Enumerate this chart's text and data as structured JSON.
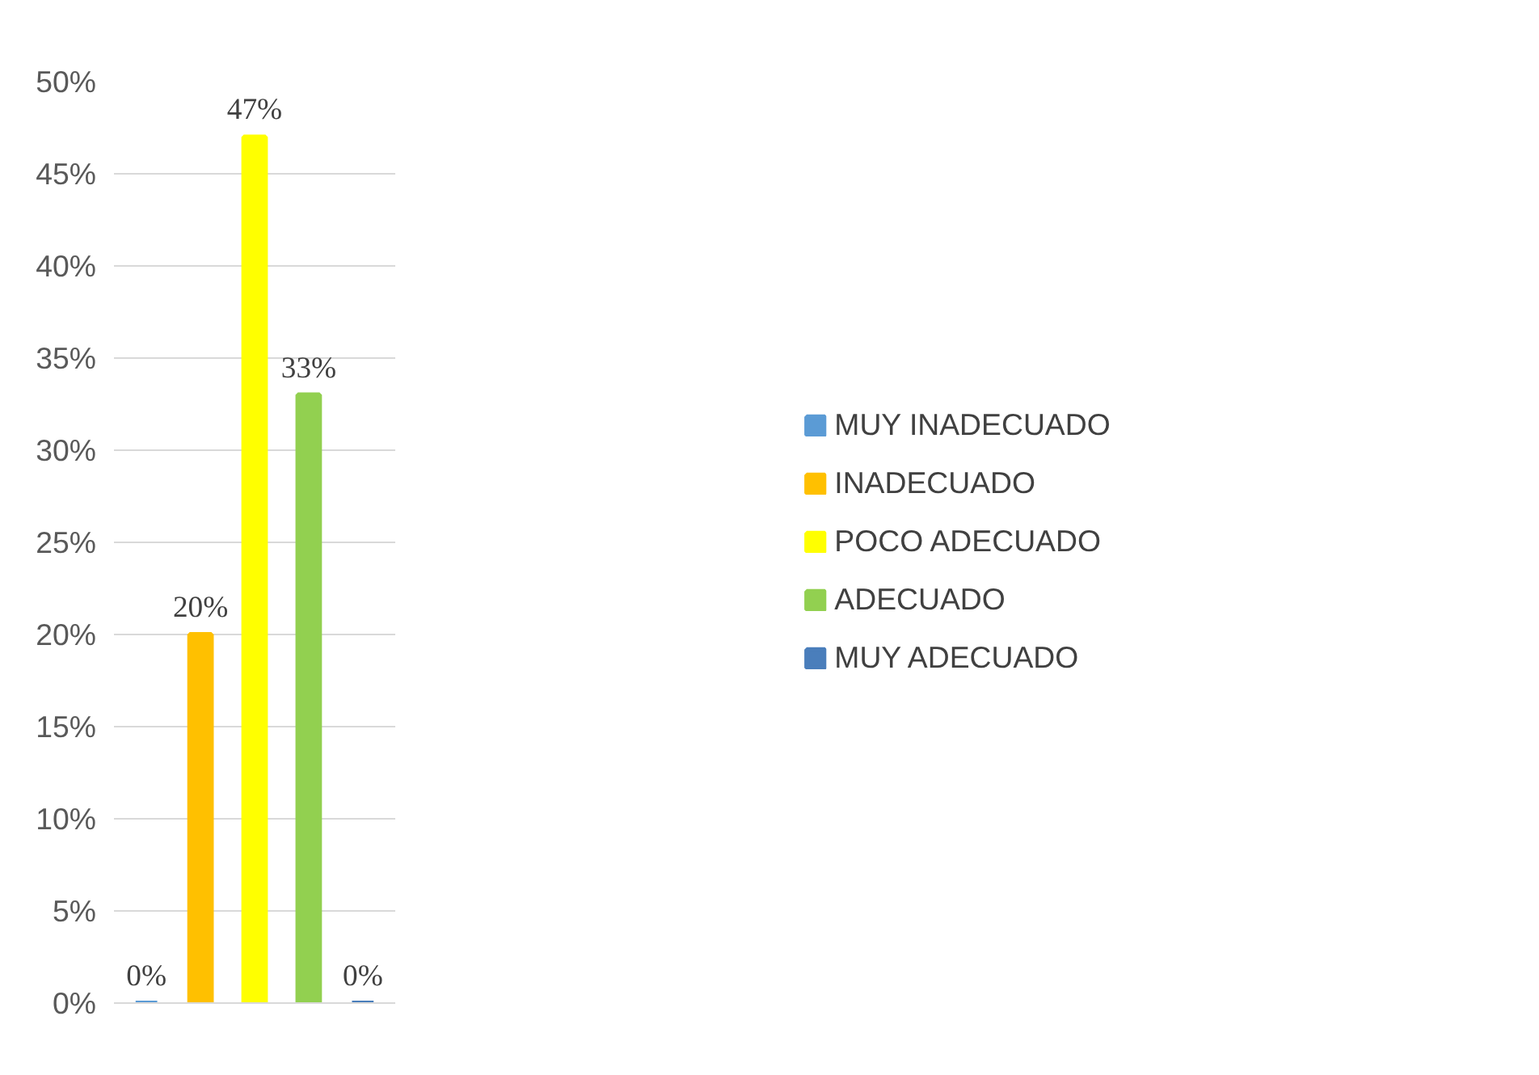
{
  "chart_data": {
    "type": "bar",
    "categories": [
      null,
      null,
      null,
      null,
      null
    ],
    "series": [
      {
        "name": "MUY INADECUADO",
        "color": "#5b9bd5",
        "values": [
          0,
          null,
          null,
          null,
          null
        ],
        "value_labels": [
          "0%",
          null,
          null,
          null,
          null
        ]
      },
      {
        "name": "INADECUADO",
        "color": "#ffc000",
        "values": [
          null,
          20,
          null,
          null,
          null
        ],
        "value_labels": [
          null,
          "20%",
          null,
          null,
          null
        ]
      },
      {
        "name": "POCO ADECUADO",
        "color": "#ffff00",
        "values": [
          null,
          null,
          47,
          null,
          null
        ],
        "value_labels": [
          null,
          null,
          "47%",
          null,
          null
        ]
      },
      {
        "name": "ADECUADO",
        "color": "#92d050",
        "values": [
          null,
          null,
          null,
          33,
          null
        ],
        "value_labels": [
          null,
          null,
          null,
          "33%",
          null
        ]
      },
      {
        "name": "MUY ADECUADO",
        "color": "#4a7ebb",
        "values": [
          null,
          null,
          null,
          null,
          0
        ],
        "value_labels": [
          null,
          null,
          null,
          null,
          "0%"
        ]
      }
    ],
    "ylim": [
      0,
      50
    ],
    "yticks": [
      {
        "value": 0,
        "label": "0%"
      },
      {
        "value": 5,
        "label": "5%"
      },
      {
        "value": 10,
        "label": "10%"
      },
      {
        "value": 15,
        "label": "15%"
      },
      {
        "value": 20,
        "label": "20%"
      },
      {
        "value": 25,
        "label": "25%"
      },
      {
        "value": 30,
        "label": "30%"
      },
      {
        "value": 35,
        "label": "35%"
      },
      {
        "value": 40,
        "label": "40%"
      },
      {
        "value": 45,
        "label": "45%"
      },
      {
        "value": 50,
        "label": "50%"
      }
    ],
    "grid": "y",
    "legend": "right"
  }
}
